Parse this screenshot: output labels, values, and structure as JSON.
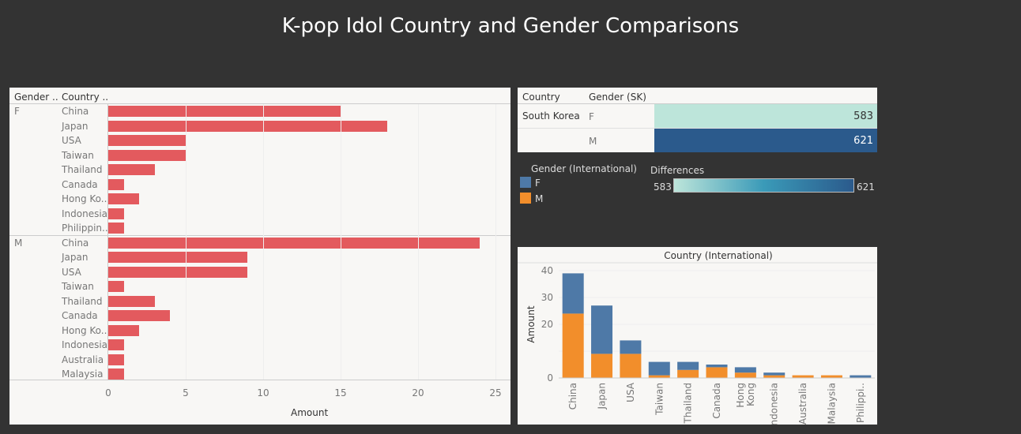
{
  "title": "K-pop Idol Country and Gender Comparisons",
  "colors": {
    "bar_red": "#e35a5e",
    "female_blue": "#4e79a7",
    "male_orange": "#f28e2b",
    "heat_light": "#bde5da",
    "heat_dark": "#2b5a8c"
  },
  "left_chart": {
    "headers": {
      "gender": "Gender ..",
      "country": "Country .."
    },
    "x_axis_title": "Amount",
    "x_ticks": [
      "0",
      "5",
      "10",
      "15",
      "20",
      "25"
    ],
    "xlim": [
      0,
      25
    ],
    "groups": [
      {
        "gender": "F",
        "rows": [
          {
            "country": "China",
            "value": 15
          },
          {
            "country": "Japan",
            "value": 18
          },
          {
            "country": "USA",
            "value": 5
          },
          {
            "country": "Taiwan",
            "value": 5
          },
          {
            "country": "Thailand",
            "value": 3
          },
          {
            "country": "Canada",
            "value": 1
          },
          {
            "country": "Hong Ko..",
            "value": 2
          },
          {
            "country": "Indonesia",
            "value": 1
          },
          {
            "country": "Philippin..",
            "value": 1
          }
        ]
      },
      {
        "gender": "M",
        "rows": [
          {
            "country": "China",
            "value": 24
          },
          {
            "country": "Japan",
            "value": 9
          },
          {
            "country": "USA",
            "value": 9
          },
          {
            "country": "Taiwan",
            "value": 1
          },
          {
            "country": "Thailand",
            "value": 3
          },
          {
            "country": "Canada",
            "value": 4
          },
          {
            "country": "Hong Ko..",
            "value": 2
          },
          {
            "country": "Indonesia",
            "value": 1
          },
          {
            "country": "Australia",
            "value": 1
          },
          {
            "country": "Malaysia",
            "value": 1
          }
        ]
      }
    ]
  },
  "sk_table": {
    "headers": {
      "country": "Country",
      "gender": "Gender (SK)"
    },
    "country": "South Korea",
    "rows": [
      {
        "gender": "F",
        "value": 583
      },
      {
        "gender": "M",
        "value": 621
      }
    ]
  },
  "legend": {
    "gender_title": "Gender (International)",
    "items": [
      {
        "label": "F",
        "color": "#4e79a7"
      },
      {
        "label": "M",
        "color": "#f28e2b"
      }
    ],
    "diff_title": "Differences",
    "diff_min": "583",
    "diff_max": "621"
  },
  "chart_data": {
    "type": "bar",
    "stacked": true,
    "title": "Country (International)",
    "xlabel": "",
    "ylabel": "Amount",
    "categories": [
      "China",
      "Japan",
      "USA",
      "Taiwan",
      "Thailand",
      "Canada",
      "Hong Kong",
      "Indonesia",
      "Australia",
      "Malaysia",
      "Philippi.."
    ],
    "series": [
      {
        "name": "M",
        "values": [
          24,
          9,
          9,
          1,
          3,
          4,
          2,
          1,
          1,
          1,
          0
        ]
      },
      {
        "name": "F",
        "values": [
          15,
          18,
          5,
          5,
          3,
          1,
          2,
          1,
          0,
          0,
          1
        ]
      }
    ],
    "y_ticks": [
      "0",
      "20",
      "30",
      "40"
    ],
    "ylim": [
      0,
      40
    ],
    "grid": true
  }
}
